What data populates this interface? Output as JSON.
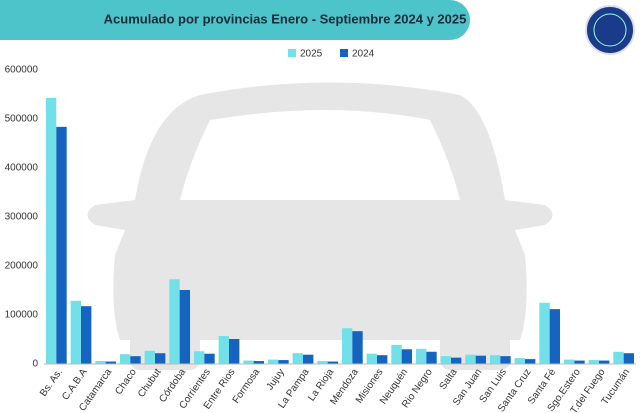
{
  "chart_data": {
    "type": "bar",
    "title": "Acumulado por provincias Enero  -  Septiembre 2024 y 2025",
    "categories": [
      "Bs. As.",
      "C.A.B.A",
      "Catamarca",
      "Chaco",
      "Chubut",
      "Córdoba",
      "Corrientes",
      "Entre Rios",
      "Formosa",
      "Jujuy",
      "La Pampa",
      "La Rioja",
      "Mendoza",
      "Misiones",
      "Neuquén",
      "Rio Negro",
      "Salta",
      "San Juan",
      "San Luis",
      "Santa Cruz",
      "Santa Fé",
      "Sgo.Estero",
      "T.del Fuego",
      "Tucumán"
    ],
    "series": [
      {
        "name": "2025",
        "color": "#72e0e8",
        "values": [
          543000,
          129000,
          6000,
          20000,
          27000,
          173000,
          26000,
          57000,
          7000,
          9000,
          22000,
          6000,
          73000,
          21000,
          39000,
          31000,
          16000,
          19000,
          18000,
          12000,
          125000,
          9000,
          8000,
          25000
        ]
      },
      {
        "name": "2024",
        "color": "#1565c0",
        "values": [
          484000,
          118000,
          5000,
          16000,
          22000,
          151000,
          21000,
          51000,
          6000,
          8000,
          19000,
          5000,
          67000,
          18000,
          30000,
          25000,
          13000,
          17000,
          16000,
          10000,
          112000,
          7000,
          7000,
          22000
        ]
      }
    ],
    "ylim": [
      0,
      600000
    ],
    "yticks": [
      0,
      100000,
      200000,
      300000,
      400000,
      500000,
      600000
    ],
    "grid": false
  }
}
